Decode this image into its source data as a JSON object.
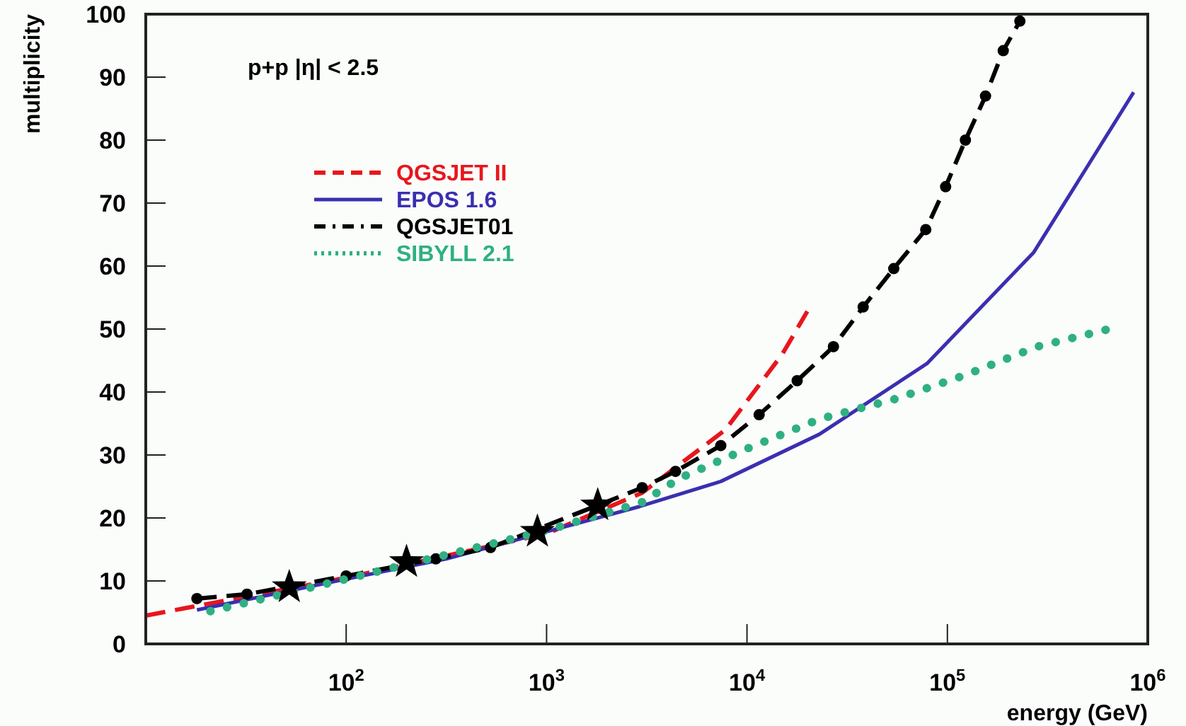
{
  "chart_data": {
    "type": "line",
    "xlabel": "energy (GeV)",
    "ylabel": "multiplicity",
    "log": "x",
    "annotations": [
      "p+p   |η| < 2.5"
    ],
    "xlim": [
      10,
      1000000
    ],
    "xticks": [
      {
        "value": 100,
        "label": "10$^{2}$"
      },
      {
        "value": 1000,
        "label": "10$^{3}$"
      },
      {
        "value": 10000,
        "label": "10$^{4}$"
      },
      {
        "value": 100000,
        "label": "10$^{5}$"
      },
      {
        "value": 1000000,
        "label": "10$^{6}$"
      }
    ],
    "ylim": [
      0,
      100
    ],
    "yticks": [
      0,
      10,
      20,
      30,
      40,
      50,
      60,
      70,
      80,
      90,
      100
    ],
    "grid": false,
    "legend": "top left",
    "series": [
      {
        "name": "QGSJET II",
        "color": "#e8161c",
        "line_style": "dashed",
        "x": [
          10,
          100,
          1000,
          3000,
          7800,
          15000,
          20000
        ],
        "values": [
          4.5,
          10.5,
          17.5,
          24,
          34,
          46,
          52.8
        ]
      },
      {
        "name": "EPOS 1.6",
        "color": "#3b2fb0",
        "line_style": "solid",
        "x": [
          18,
          100,
          316,
          2900,
          7400,
          23000,
          79000,
          270000,
          850000
        ],
        "values": [
          5.4,
          10.3,
          13.5,
          21.8,
          25.8,
          33.3,
          44.5,
          62.2,
          87.6
        ]
      },
      {
        "name": "QGSJET01",
        "color": "#000000",
        "line_style": "dashed",
        "marker": "circle",
        "x": [
          18,
          32,
          100,
          280,
          525,
          3000,
          4400,
          7400,
          11500,
          17800,
          27000,
          38000,
          54000,
          78000,
          98000,
          123000,
          155000,
          190000,
          230000
        ],
        "values": [
          7.2,
          7.9,
          10.8,
          13.5,
          15.3,
          24.8,
          27.4,
          31.5,
          36.4,
          41.8,
          47.2,
          53.5,
          59.6,
          65.8,
          72.6,
          80,
          87,
          94.2,
          98.9
        ]
      },
      {
        "name": "SIBYLL 2.1",
        "color": "#2fb082",
        "line_style": "dotted",
        "x": [
          21,
          100,
          1000,
          3000,
          4600,
          10000,
          23000,
          55000,
          123000,
          280000,
          660000
        ],
        "values": [
          5.2,
          10.3,
          18,
          22.5,
          26.3,
          31,
          35.7,
          38.9,
          42.7,
          47.2,
          50.1
        ]
      },
      {
        "type": "scatter",
        "color": "#000000",
        "marker": "star",
        "x": [
          52,
          200,
          900,
          1800
        ],
        "values": [
          9,
          13,
          17.8,
          22
        ]
      }
    ]
  }
}
